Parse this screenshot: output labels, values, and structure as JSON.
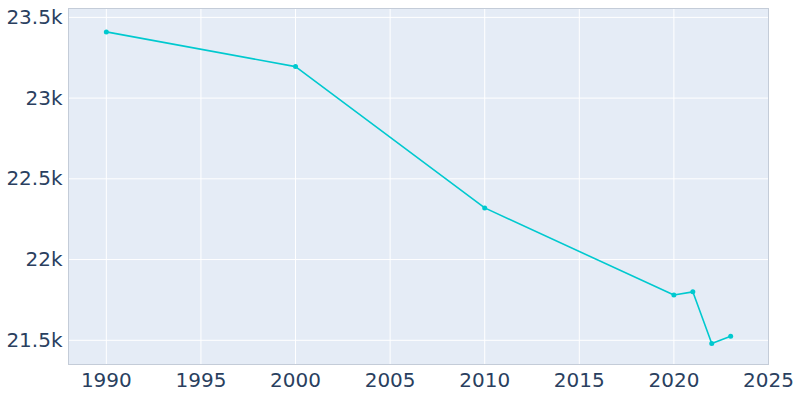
{
  "chart_data": {
    "type": "line",
    "x": [
      1990,
      2000,
      2010,
      2020,
      2021,
      2022,
      2023
    ],
    "values": [
      23410,
      23195,
      22320,
      21780,
      21800,
      21480,
      21525
    ],
    "color": "#00c9cf",
    "marker": "circle",
    "line_style": "solid",
    "xlim": [
      1988,
      2025
    ],
    "xticks": [
      1990,
      1995,
      2000,
      2005,
      2010,
      2015,
      2020,
      2025
    ],
    "ylim": [
      21350,
      23555
    ],
    "yticks": [
      {
        "value": 21500,
        "label": "21.5k"
      },
      {
        "value": 22000,
        "label": "22k"
      },
      {
        "value": 22500,
        "label": "22.5k"
      },
      {
        "value": 23000,
        "label": "23k"
      },
      {
        "value": 23500,
        "label": "23.5k"
      }
    ],
    "grid": true
  }
}
